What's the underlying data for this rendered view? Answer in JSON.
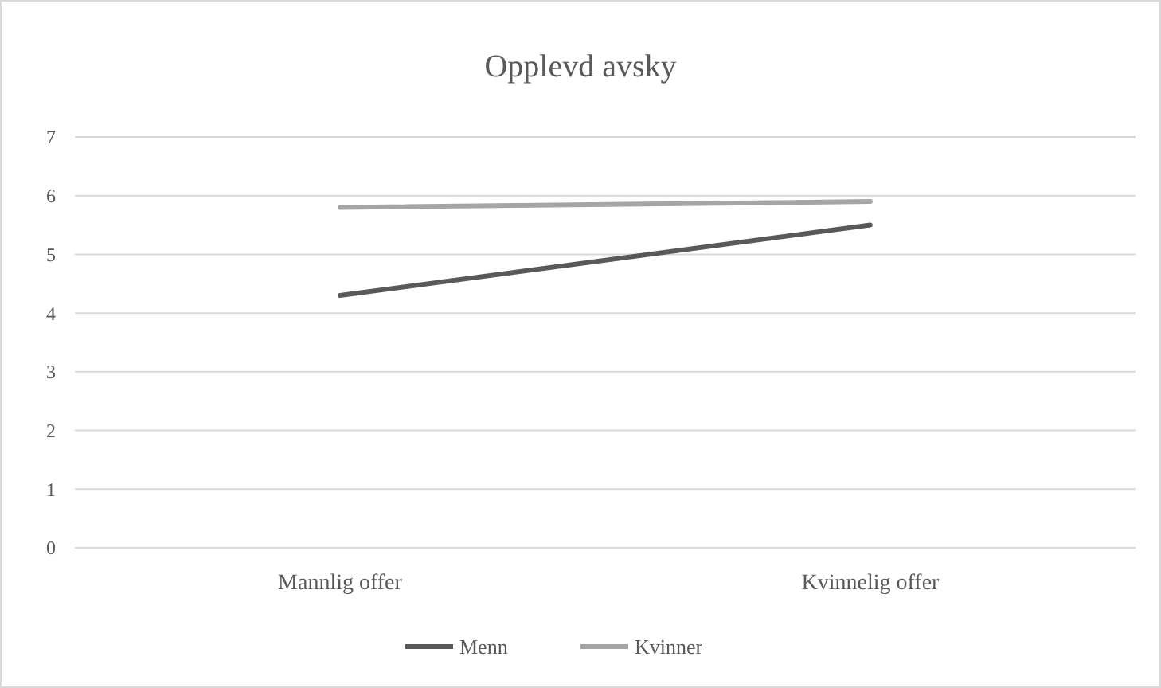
{
  "chart_data": {
    "type": "line",
    "title": "Opplevd avsky",
    "categories": [
      "Mannlig offer",
      "Kvinnelig offer"
    ],
    "series": [
      {
        "name": "Menn",
        "color": "#595959",
        "values": [
          4.3,
          5.5
        ]
      },
      {
        "name": "Kvinner",
        "color": "#a5a5a5",
        "values": [
          5.8,
          5.9
        ]
      }
    ],
    "ylim": [
      0,
      7
    ],
    "yticks": [
      0,
      1,
      2,
      3,
      4,
      5,
      6,
      7
    ],
    "grid": "y",
    "legend": "bottom",
    "marker": "none"
  }
}
